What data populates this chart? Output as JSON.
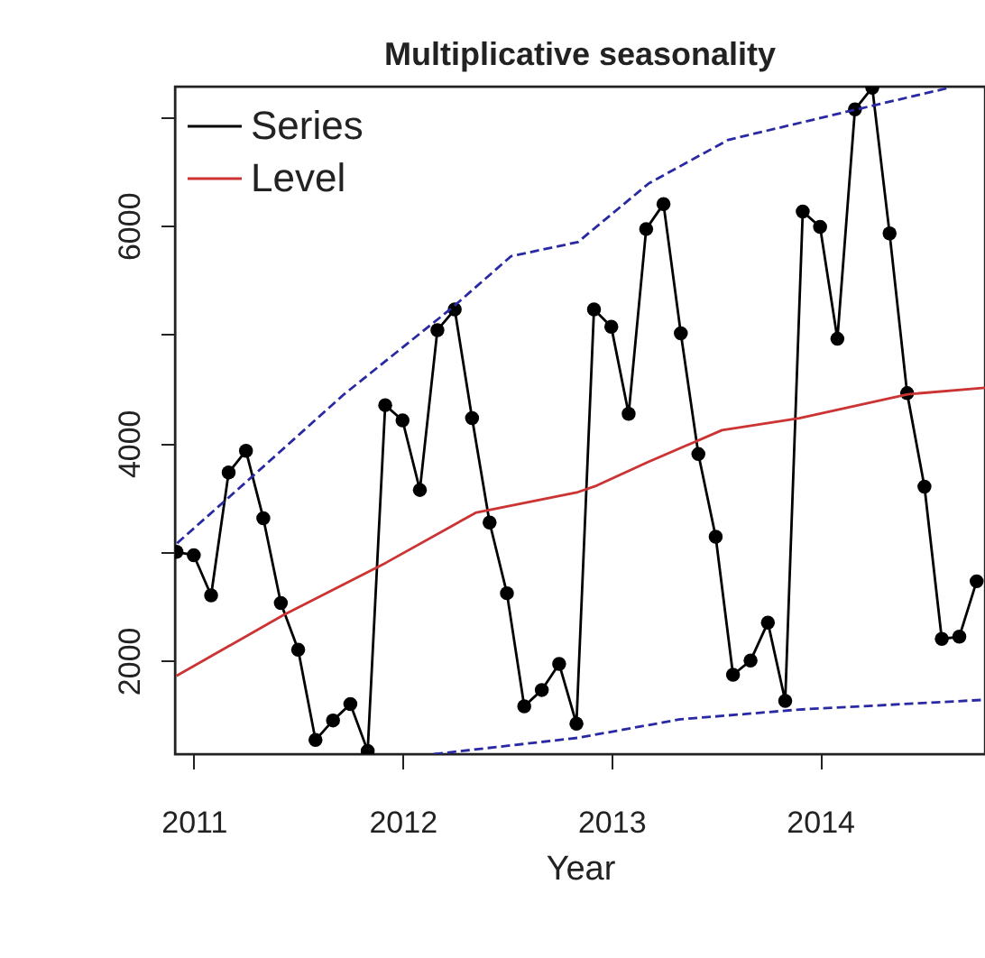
{
  "chart_data": {
    "type": "line",
    "title": "Multiplicative seasonality",
    "xlabel": "Year",
    "xlim": [
      2010.91,
      2014.79
    ],
    "xticks": [
      2011,
      2012,
      2013,
      2014
    ],
    "ylim": [
      1140,
      7280
    ],
    "yticks": [
      {
        "value": 2000,
        "label": "2000"
      },
      {
        "value": 3000,
        "label": null
      },
      {
        "value": 4000,
        "label": "4000"
      },
      {
        "value": 5000,
        "label": null
      },
      {
        "value": 6000,
        "label": "6000"
      },
      {
        "value": 7000,
        "label": null
      }
    ],
    "grid": false,
    "legend": "top left",
    "series": [
      {
        "name": "Series",
        "color": "#000000",
        "marker": "circle",
        "line_style": "solid",
        "x": [
          2010.917,
          2011,
          2011.083,
          2011.167,
          2011.25,
          2011.333,
          2011.417,
          2011.5,
          2011.583,
          2011.667,
          2011.75,
          2011.833,
          2011.917,
          2012,
          2012.083,
          2012.167,
          2012.25,
          2012.333,
          2012.417,
          2012.5,
          2012.583,
          2012.667,
          2012.75,
          2012.833,
          2012.917,
          2013,
          2013.083,
          2013.167,
          2013.25,
          2013.333,
          2013.417,
          2013.5,
          2013.583,
          2013.667,
          2013.75,
          2013.833,
          2013.917,
          2014,
          2014.083,
          2014.167,
          2014.25,
          2014.333,
          2014.417,
          2014.5,
          2014.583,
          2014.667,
          2014.75
        ],
        "values": [
          3000,
          2970,
          2600,
          3730,
          3930,
          3310,
          2530,
          2100,
          1270,
          1450,
          1600,
          1170,
          4350,
          4210,
          3570,
          5040,
          5230,
          4230,
          3270,
          2620,
          1580,
          1730,
          1970,
          1420,
          5230,
          5070,
          4270,
          5970,
          6200,
          5010,
          3900,
          3140,
          1870,
          2000,
          2350,
          1630,
          6130,
          5990,
          4960,
          7070,
          7270,
          5930,
          4460,
          3600,
          2200,
          2220,
          2730
        ]
      },
      {
        "name": "Level",
        "color": "#cc3333",
        "marker": "none",
        "line_style": "solid",
        "x": [
          2010.917,
          2011.43,
          2011.92,
          2012.35,
          2012.84,
          2012.93,
          2013.18,
          2013.53,
          2013.9,
          2014.42,
          2014.79
        ],
        "values": [
          1860,
          2420,
          2900,
          3360,
          3550,
          3610,
          3830,
          4120,
          4230,
          4450,
          4510
        ]
      },
      {
        "color": "#2929a3",
        "marker": "none",
        "line_style": "dashed",
        "x": [
          2010.92,
          2011.29,
          2011.72,
          2012.24,
          2012.52,
          2012.84,
          2013.18,
          2013.56,
          2014.13,
          2014.62
        ],
        "values": [
          3080,
          3710,
          4450,
          5250,
          5720,
          5850,
          6390,
          6790,
          7050,
          7270
        ]
      },
      {
        "color": "#2929a3",
        "marker": "none",
        "line_style": "dashed",
        "x": [
          2012.15,
          2012.84,
          2013.33,
          2013.9,
          2014.79
        ],
        "values": [
          1140,
          1290,
          1460,
          1550,
          1640
        ]
      }
    ]
  }
}
